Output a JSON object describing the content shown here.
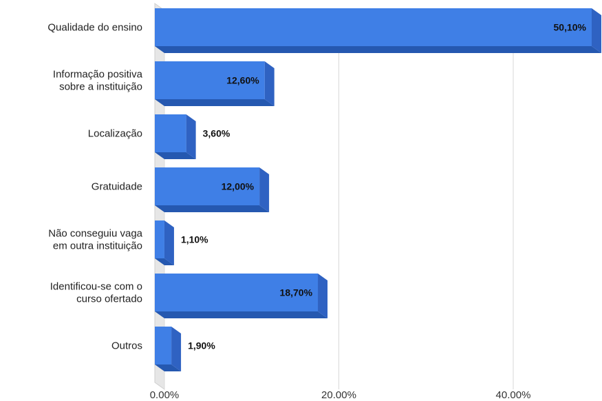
{
  "chart_data": {
    "type": "bar",
    "orientation": "horizontal",
    "categories": [
      [
        "Qualidade do ensino"
      ],
      [
        "Informação positiva",
        "sobre a instituição"
      ],
      [
        "Localização"
      ],
      [
        "Gratuidade"
      ],
      [
        "Não conseguiu vaga",
        "em outra instituição"
      ],
      [
        "Identificou-se com o",
        "curso ofertado"
      ],
      [
        "Outros"
      ]
    ],
    "values": [
      50.1,
      12.6,
      3.6,
      12.0,
      1.1,
      18.7,
      1.9
    ],
    "value_labels": [
      "50,10%",
      "12,60%",
      "3,60%",
      "12,00%",
      "1,10%",
      "18,70%",
      "1,90%"
    ],
    "xticks": [
      0,
      20,
      40
    ],
    "xtick_labels": [
      "0.00%",
      "20.00%",
      "40.00%"
    ],
    "xlim": [
      0,
      50.1
    ],
    "grid": true,
    "colors": {
      "bar_front": "#3f7fe6",
      "bar_side": "#2f62c2",
      "bar_bottom": "#2558b0",
      "bar_top": "#6b9cf0",
      "gridline": "#d8d8d8",
      "floor": "#cfcfcf"
    }
  }
}
